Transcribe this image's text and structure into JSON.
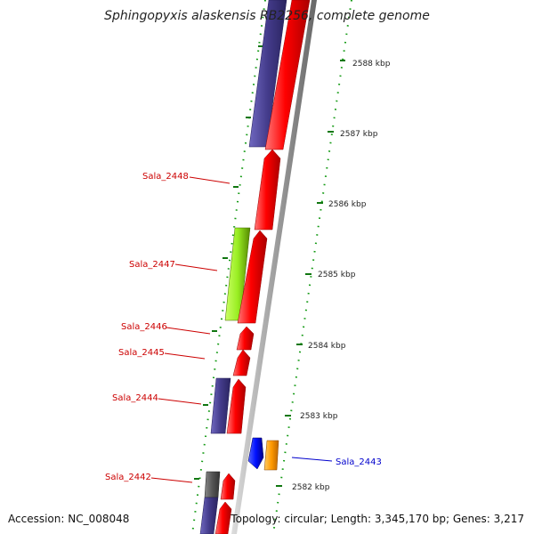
{
  "title": "Sphingopyxis alaskensis RB2256, complete genome",
  "footer": {
    "accession": "Accession: NC_008048",
    "summary": "Topology: circular; Length: 3,345,170 bp; Genes: 3,217"
  },
  "scale_ticks": [
    "2588 kbp",
    "2587 kbp",
    "2586 kbp",
    "2585 kbp",
    "2584 kbp",
    "2583 kbp",
    "2582 kbp"
  ],
  "gene_labels": [
    {
      "text": "Sala_2448",
      "color": "#cc0000"
    },
    {
      "text": "Sala_2447",
      "color": "#cc0000"
    },
    {
      "text": "Sala_2446",
      "color": "#cc0000"
    },
    {
      "text": "Sala_2445",
      "color": "#cc0000"
    },
    {
      "text": "Sala_2444",
      "color": "#cc0000"
    },
    {
      "text": "Sala_2443",
      "color": "#0000cc"
    },
    {
      "text": "Sala_2442",
      "color": "#cc0000"
    }
  ],
  "colors": {
    "cds": "#ff0000",
    "rna_or_other": "#443d8b",
    "highlight_green": "#99ee22",
    "pseudo_gray": "#555555",
    "backbone": "#999999",
    "blue_feature": "#0011ff",
    "orange_feature": "#ff9900",
    "dots": "#119911"
  }
}
